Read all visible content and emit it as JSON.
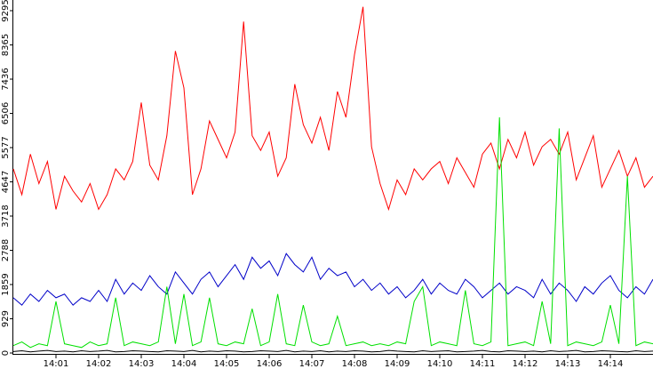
{
  "chart_data": {
    "type": "line",
    "x": [
      0,
      0.2,
      0.4,
      0.6,
      0.8,
      1,
      1.2,
      1.4,
      1.6,
      1.8,
      2,
      2.2,
      2.4,
      2.6,
      2.8,
      3,
      3.2,
      3.4,
      3.6,
      3.8,
      4,
      4.2,
      4.4,
      4.6,
      4.8,
      5,
      5.2,
      5.4,
      5.6,
      5.8,
      6,
      6.2,
      6.4,
      6.6,
      6.8,
      7,
      7.2,
      7.4,
      7.6,
      7.8,
      8,
      8.2,
      8.4,
      8.6,
      8.8,
      9,
      9.2,
      9.4,
      9.6,
      9.8,
      10,
      10.2,
      10.4,
      10.6,
      10.8,
      11,
      11.2,
      11.4,
      11.6,
      11.8,
      12,
      12.2,
      12.4,
      12.6,
      12.8,
      13,
      13.2,
      13.4,
      13.6,
      13.8,
      14,
      14.2,
      14.4,
      14.6,
      14.8,
      15
    ],
    "series": [
      {
        "color": "#ff0000",
        "values": [
          5000,
          4300,
          5400,
          4600,
          5200,
          3900,
          4800,
          4400,
          4100,
          4600,
          3900,
          4300,
          5000,
          4700,
          5200,
          6800,
          5100,
          4700,
          5900,
          8200,
          7200,
          4300,
          5000,
          6300,
          5800,
          5300,
          6000,
          9000,
          5900,
          5500,
          6000,
          4800,
          5300,
          7300,
          6200,
          5700,
          6400,
          5500,
          7100,
          6400,
          8100,
          9400,
          5600,
          4600,
          3900,
          4700,
          4300,
          5000,
          4700,
          5000,
          5200,
          4600,
          5300,
          4900,
          4500,
          5400,
          5700,
          5000,
          5800,
          5300,
          6000,
          5100,
          5600,
          5800,
          5400,
          6000,
          4700,
          5300,
          5900,
          4500,
          5000,
          5500,
          4800,
          5300,
          4500,
          4800
        ]
      },
      {
        "color": "#0000c8",
        "values": [
          1500,
          1300,
          1600,
          1400,
          1700,
          1500,
          1600,
          1300,
          1500,
          1400,
          1700,
          1400,
          2000,
          1600,
          1900,
          1700,
          2100,
          1800,
          1600,
          2200,
          1900,
          1600,
          2000,
          2200,
          1800,
          2100,
          2400,
          2000,
          2600,
          2300,
          2500,
          2100,
          2700,
          2400,
          2200,
          2600,
          2000,
          2300,
          2100,
          2200,
          1800,
          2000,
          1700,
          1900,
          1600,
          1800,
          1500,
          1700,
          2000,
          1600,
          1900,
          1700,
          1600,
          2000,
          1800,
          1500,
          1700,
          1900,
          1600,
          1800,
          1700,
          1500,
          2000,
          1600,
          1900,
          1700,
          1400,
          1800,
          1600,
          1900,
          2100,
          1700,
          1500,
          1800,
          1600,
          2000
        ]
      },
      {
        "color": "#00e000",
        "values": [
          200,
          300,
          150,
          250,
          200,
          1400,
          250,
          200,
          150,
          300,
          200,
          250,
          1500,
          200,
          300,
          250,
          200,
          300,
          1800,
          250,
          1600,
          200,
          300,
          1500,
          250,
          200,
          300,
          250,
          1200,
          200,
          300,
          1600,
          250,
          200,
          1300,
          300,
          200,
          250,
          1000,
          200,
          250,
          300,
          200,
          250,
          200,
          300,
          250,
          1400,
          1800,
          200,
          300,
          250,
          200,
          1700,
          250,
          200,
          300,
          6400,
          200,
          250,
          300,
          200,
          1400,
          250,
          6100,
          200,
          300,
          250,
          200,
          300,
          1300,
          250,
          4800,
          200,
          300,
          250
        ]
      },
      {
        "color": "#000000",
        "values": [
          40,
          60,
          30,
          50,
          70,
          40,
          50,
          30,
          60,
          40,
          50,
          70,
          30,
          40,
          60,
          50,
          40,
          30,
          60,
          50,
          40,
          70,
          30,
          50,
          40,
          60,
          50,
          30,
          40,
          60,
          50,
          40,
          70,
          30,
          50,
          40,
          60,
          30,
          50,
          40,
          60,
          50,
          30,
          40,
          70,
          50,
          40,
          30,
          60,
          40,
          50,
          60,
          30,
          40,
          50,
          70,
          40,
          30,
          60,
          50,
          40,
          50,
          30,
          60,
          40,
          50,
          70,
          30,
          40,
          60,
          50,
          40,
          30,
          60,
          40,
          50
        ]
      }
    ],
    "xlim": [
      0,
      15
    ],
    "xticks": [
      {
        "value": 1,
        "label": "14:01"
      },
      {
        "value": 2,
        "label": "14:02"
      },
      {
        "value": 3,
        "label": "14:03"
      },
      {
        "value": 4,
        "label": "14:04"
      },
      {
        "value": 5,
        "label": "14:05"
      },
      {
        "value": 6,
        "label": "14:06"
      },
      {
        "value": 7,
        "label": "14:07"
      },
      {
        "value": 8,
        "label": "14:08"
      },
      {
        "value": 9,
        "label": "14:09"
      },
      {
        "value": 10,
        "label": "14:10"
      },
      {
        "value": 11,
        "label": "14:11"
      },
      {
        "value": 12,
        "label": "14:12"
      },
      {
        "value": 13,
        "label": "14:13"
      },
      {
        "value": 14,
        "label": "14:14"
      }
    ],
    "ylim": [
      0,
      9585
    ],
    "yticks": [
      0,
      929,
      1859,
      2788,
      3718,
      4647,
      5577,
      6506,
      7436,
      8365,
      9295
    ],
    "grid": false
  }
}
